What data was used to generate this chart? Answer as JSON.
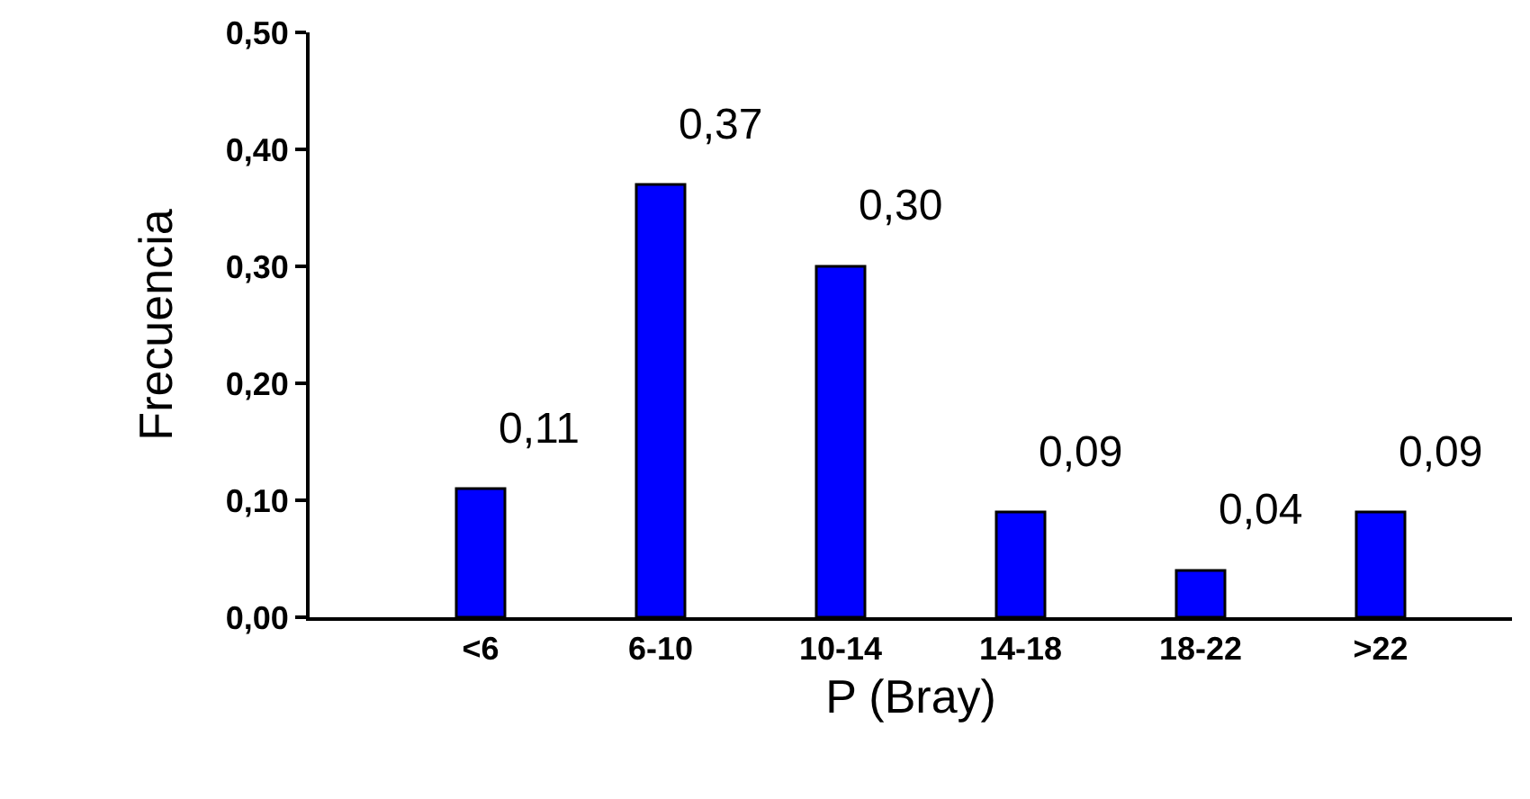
{
  "chart_data": {
    "type": "bar",
    "xlabel": "P (Bray)",
    "ylabel": "Frecuencia",
    "categories": [
      "<6",
      "6-10",
      "10-14",
      "14-18",
      "18-22",
      ">22"
    ],
    "values": [
      0.11,
      0.37,
      0.3,
      0.09,
      0.04,
      0.09
    ],
    "value_labels": [
      "0,11",
      "0,37",
      "0,30",
      "0,09",
      "0,04",
      "0,09"
    ],
    "color": "#0000ff",
    "ylim": [
      0,
      0.5
    ],
    "yticks": [
      {
        "value": 0,
        "label": "0,00"
      },
      {
        "value": 0.1,
        "label": "0,10"
      },
      {
        "value": 0.2,
        "label": "0,20"
      },
      {
        "value": 0.3,
        "label": "0,30"
      },
      {
        "value": 0.4,
        "label": "0,40"
      },
      {
        "value": 0.5,
        "label": "0,50"
      }
    ]
  }
}
